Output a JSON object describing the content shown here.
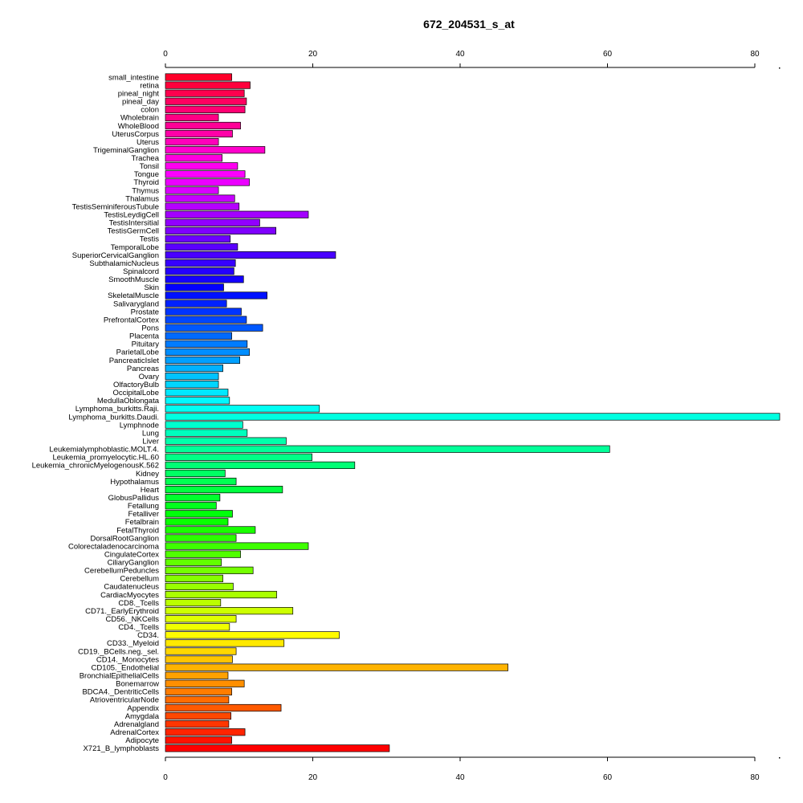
{
  "chart_data": {
    "type": "bar",
    "orientation": "horizontal",
    "title": "672_204531_s_at",
    "xlim": [
      0,
      80
    ],
    "x_ticks": [
      "0",
      "20",
      "40",
      "60",
      "80"
    ],
    "grid": false,
    "axes": "top-and-bottom",
    "categories": [
      "small_intestine",
      "retina",
      "pineal_night",
      "pineal_day",
      "colon",
      "Wholebrain",
      "WholeBlood",
      "UterusCorpus",
      "Uterus",
      "TrigeminalGanglion",
      "Trachea",
      "Tonsil",
      "Tongue",
      "Thyroid",
      "Thymus",
      "Thalamus",
      "TestisSeminiferousTubule",
      "TestisLeydigCell",
      "TestisIntersitial",
      "TestisGermCell",
      "Testis",
      "TemporalLobe",
      "SuperiorCervicalGanglion",
      "SubthalamicNucleus",
      "Spinalcord",
      "SmoothMuscle",
      "Skin",
      "SkeletalMuscle",
      "Salivarygland",
      "Prostate",
      "PrefrontalCortex",
      "Pons",
      "Placenta",
      "Pituitary",
      "ParietalLobe",
      "PancreaticIslet",
      "Pancreas",
      "Ovary",
      "OlfactoryBulb",
      "OccipitalLobe",
      "MedullaOblongata",
      "Lymphoma_burkitts.Raji.",
      "Lymphoma_burkitts.Daudi.",
      "Lymphnode",
      "Lung",
      "Liver",
      "Leukemialymphoblastic.MOLT.4.",
      "Leukemia_promyelocytic.HL.60",
      "Leukemia_chronicMyelogenousK.562",
      "Kidney",
      "Hypothalamus",
      "Heart",
      "GlobusPallidus",
      "Fetallung",
      "Fetalliver",
      "Fetalbrain",
      "FetalThyroid",
      "DorsalRootGanglion",
      "Colorectaladenocarcinoma",
      "CingulateCortex",
      "CiliaryGanglion",
      "CerebellumPeduncles",
      "Cerebellum",
      "Caudatenucleus",
      "CardiacMyocytes",
      "CD8._Tcells",
      "CD71._EarlyErythroid",
      "CD56._NKCells",
      "CD4._Tcells",
      "CD34.",
      "CD33._Myeloid",
      "CD19._BCells.neg._sel.",
      "CD14._Monocytes",
      "CD105._Endothelial",
      "BronchialEpithelialCells",
      "Bonemarrow",
      "BDCA4._DentriticCells",
      "AtrioventricularNode",
      "Appendix",
      "Amygdala",
      "Adrenalgland",
      "AdrenalCortex",
      "Adipocyte",
      "X721_B_lymphoblasts"
    ],
    "values": [
      9.0,
      11.5,
      10.7,
      11.0,
      10.8,
      7.2,
      10.2,
      9.1,
      7.2,
      13.5,
      7.7,
      9.8,
      10.8,
      11.4,
      7.2,
      9.4,
      10.0,
      19.4,
      12.8,
      15.0,
      8.8,
      9.8,
      23.1,
      9.5,
      9.3,
      10.6,
      7.9,
      13.8,
      8.3,
      10.3,
      11.0,
      13.2,
      9.0,
      11.1,
      11.4,
      10.1,
      7.8,
      7.2,
      7.2,
      8.5,
      8.7,
      20.9,
      83.5,
      10.5,
      11.1,
      16.4,
      60.3,
      19.9,
      25.7,
      8.1,
      9.6,
      15.9,
      7.4,
      6.9,
      9.1,
      8.5,
      12.2,
      9.6,
      19.4,
      10.2,
      7.6,
      11.9,
      7.8,
      9.2,
      15.1,
      7.5,
      17.3,
      9.6,
      8.7,
      23.6,
      16.1,
      9.6,
      9.1,
      46.5,
      8.5,
      10.7,
      9.0,
      8.6,
      15.7,
      8.9,
      8.6,
      10.8,
      9.0,
      30.4
    ]
  }
}
